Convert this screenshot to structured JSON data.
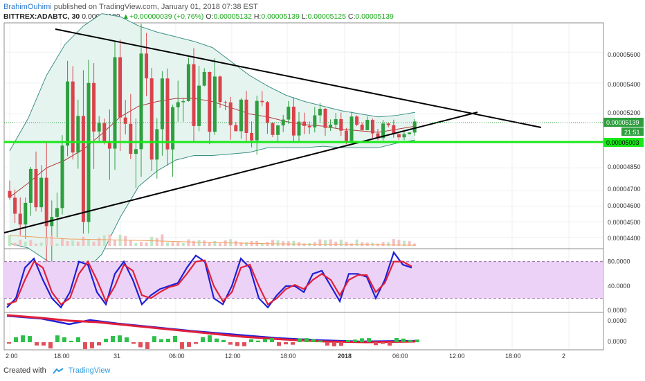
{
  "header": {
    "author": "BrahimOuhimi",
    "published_text": " published on TradingView.com, January 01, 2018 07:38 EST",
    "symbol": "BITTREX:ADABTC, 30",
    "last": "0.00005139",
    "change": "+0.00000039 (+0.76%)",
    "open_label": "O:",
    "open": "0.00005132",
    "high_label": "H:",
    "high": "0.00005139",
    "low_label": "L:",
    "low": "0.00005125",
    "close_label": "C:",
    "close": "0.00005139"
  },
  "footer": {
    "created_with": "Created with",
    "brand": "TradingView"
  },
  "colors": {
    "up": "#2e9e3e",
    "down": "#d9434b",
    "bb_fill": "#e6f4f0",
    "bb_line": "#3d8f84",
    "trend": "#000000",
    "support": "#18e818",
    "stoch_k": "#1f1fd6",
    "stoch_d": "#e01f3a",
    "stoch_bg": "#ecd2f7",
    "price_tag": "#2e9e3e"
  },
  "chart_data": [
    {
      "type": "candlestick",
      "title": "BITTREX:ADABTC, 30",
      "x_tick_labels": [
        "2:00",
        "18:00",
        "31",
        "06:00",
        "12:00",
        "18:00",
        "2018",
        "06:00",
        "12:00",
        "18:00",
        "2"
      ],
      "y_tick_labels": [
        "0.00005600",
        "0.00005400",
        "0.00005200",
        "0.00005139",
        "0.00005003",
        "0.00004850",
        "0.00004700",
        "0.00004600",
        "0.00004500",
        "0.00004400"
      ],
      "ylim": [
        4.33e-05,
        5.79e-05
      ],
      "price_tag": "0.00005139",
      "countdown": "21:51",
      "support_level": 5.003e-05,
      "support_label": "0.00005003",
      "trendline_upper": [
        [
          0,
          5.785e-05
        ],
        [
          81,
          5.19e-05
        ]
      ],
      "trendline_lower": [
        [
          -3,
          4.42e-05
        ],
        [
          81,
          5.19e-05
        ]
      ],
      "candles_approx": [
        {
          "t": 0,
          "o": 4.71e-05,
          "c": 4.72e-05
        },
        {
          "t": 2,
          "o": 4.76e-05,
          "c": 4.9e-05
        },
        {
          "t": 4,
          "o": 4.9e-05,
          "c": 5.05e-05
        },
        {
          "t": 6,
          "o": 5e-05,
          "c": 5.1e-05
        },
        {
          "t": 8,
          "o": 5.05e-05,
          "c": 4.9e-05
        },
        {
          "t": 12,
          "o": 4.85e-05,
          "c": 4.75e-05
        },
        {
          "t": 14,
          "o": 5e-05,
          "c": 5.6e-05
        },
        {
          "t": 16,
          "o": 5.55e-05,
          "c": 5.4e-05
        },
        {
          "t": 20,
          "o": 5.1e-05,
          "c": 5e-05
        },
        {
          "t": 24,
          "o": 5.2e-05,
          "c": 5.3e-05
        },
        {
          "t": 28,
          "o": 5.35e-05,
          "c": 5.4e-05
        },
        {
          "t": 37,
          "o": 5.45e-05,
          "c": 5.55e-05
        },
        {
          "t": 40,
          "o": 5.3e-05,
          "c": 5.2e-05
        },
        {
          "t": 46,
          "o": 5.2e-05,
          "c": 5.1e-05
        },
        {
          "t": 52,
          "o": 5.1e-05,
          "c": 5.15e-05
        },
        {
          "t": 60,
          "o": 5.15e-05,
          "c": 5.05e-05
        },
        {
          "t": 66,
          "o": 5.02e-05,
          "c": 5.1e-05
        },
        {
          "t": 70,
          "o": 5.1e-05,
          "c": 5.18e-05
        },
        {
          "t": 74,
          "o": 5.13e-05,
          "c": 5.14e-05
        }
      ]
    },
    {
      "type": "line",
      "title": "Stochastic",
      "y_tick_labels": [
        "80.0000",
        "40.0000",
        "0.0000"
      ],
      "ylim": [
        -2,
        100
      ],
      "band": [
        20,
        80
      ],
      "series": [
        {
          "values": [
            5,
            20,
            70,
            85,
            50,
            20,
            5,
            30,
            80,
            75,
            30,
            10,
            60,
            80,
            50,
            10,
            25,
            35,
            40,
            45,
            70,
            90,
            80,
            20,
            10,
            40,
            85,
            70,
            20,
            5,
            25,
            40,
            40,
            30,
            60,
            65,
            40,
            15,
            60,
            60,
            55,
            20,
            50,
            95,
            75,
            70
          ]
        },
        {
          "values": [
            10,
            15,
            50,
            80,
            70,
            30,
            10,
            20,
            60,
            80,
            50,
            15,
            40,
            75,
            65,
            25,
            20,
            30,
            38,
            42,
            60,
            80,
            82,
            40,
            15,
            30,
            70,
            75,
            40,
            10,
            20,
            35,
            42,
            35,
            50,
            60,
            50,
            25,
            50,
            58,
            58,
            30,
            45,
            80,
            80,
            72
          ]
        }
      ]
    },
    {
      "type": "line",
      "title": "MACD",
      "y_tick_labels": [
        "0.0000",
        "0.0000"
      ]
    }
  ]
}
